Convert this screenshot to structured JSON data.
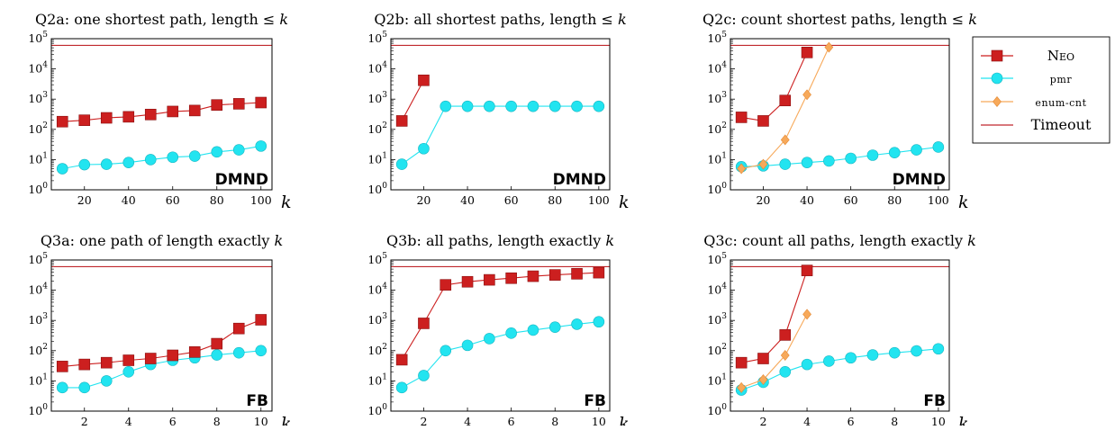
{
  "colors": {
    "neo": "#cc1f1f",
    "pmr": "#22e4f0",
    "enum": "#f7a95a",
    "timeout": "#c0282d"
  },
  "chart_data": [
    {
      "id": "q2a",
      "type": "line",
      "title": "Q2a: one shortest path, length ≤ ",
      "title_var": "k",
      "xlabel": "k",
      "dataset": "DMND",
      "yscale": "log",
      "ylim": [
        1,
        100000
      ],
      "xlim": [
        5,
        105
      ],
      "xticks": [
        20,
        40,
        60,
        80,
        100
      ],
      "yticks": [
        {
          "v": 1,
          "e": "0"
        },
        {
          "v": 10,
          "e": "1"
        },
        {
          "v": 100,
          "e": "2"
        },
        {
          "v": 1000,
          "e": "3"
        },
        {
          "v": 10000,
          "e": "4"
        },
        {
          "v": 100000,
          "e": "5"
        }
      ],
      "timeout": 60000,
      "series": [
        {
          "name": "Neo",
          "marker": "square",
          "x": [
            10,
            20,
            30,
            40,
            50,
            60,
            70,
            80,
            90,
            100
          ],
          "y": [
            180,
            200,
            240,
            260,
            310,
            390,
            420,
            640,
            700,
            770
          ]
        },
        {
          "name": "PMR",
          "marker": "circle",
          "x": [
            10,
            20,
            30,
            40,
            50,
            60,
            70,
            80,
            90,
            100
          ],
          "y": [
            5,
            6.8,
            7,
            8,
            10,
            12,
            13,
            18,
            21,
            28
          ]
        }
      ]
    },
    {
      "id": "q2b",
      "type": "line",
      "title": "Q2b: all shortest paths, length ≤ ",
      "title_var": "k",
      "xlabel": "k",
      "dataset": "DMND",
      "yscale": "log",
      "ylim": [
        1,
        100000
      ],
      "xlim": [
        5,
        105
      ],
      "xticks": [
        20,
        40,
        60,
        80,
        100
      ],
      "yticks": [
        {
          "v": 1,
          "e": "0"
        },
        {
          "v": 10,
          "e": "1"
        },
        {
          "v": 100,
          "e": "2"
        },
        {
          "v": 1000,
          "e": "3"
        },
        {
          "v": 10000,
          "e": "4"
        },
        {
          "v": 100000,
          "e": "5"
        }
      ],
      "timeout": 60000,
      "series": [
        {
          "name": "Neo",
          "marker": "square",
          "x": [
            10,
            20
          ],
          "y": [
            190,
            4200
          ]
        },
        {
          "name": "PMR",
          "marker": "circle",
          "x": [
            10,
            20,
            30,
            40,
            50,
            60,
            70,
            80,
            90,
            100
          ],
          "y": [
            7,
            23,
            580,
            580,
            580,
            580,
            580,
            580,
            580,
            580
          ]
        }
      ]
    },
    {
      "id": "q2c",
      "type": "line",
      "title": "Q2c: count shortest paths, length ≤ ",
      "title_var": "k",
      "xlabel": "k",
      "dataset": "DMND",
      "yscale": "log",
      "ylim": [
        1,
        100000
      ],
      "xlim": [
        5,
        105
      ],
      "xticks": [
        20,
        40,
        60,
        80,
        100
      ],
      "yticks": [
        {
          "v": 1,
          "e": "0"
        },
        {
          "v": 10,
          "e": "1"
        },
        {
          "v": 100,
          "e": "2"
        },
        {
          "v": 1000,
          "e": "3"
        },
        {
          "v": 10000,
          "e": "4"
        },
        {
          "v": 100000,
          "e": "5"
        }
      ],
      "timeout": 60000,
      "series": [
        {
          "name": "Neo",
          "marker": "square",
          "x": [
            10,
            20,
            30,
            40
          ],
          "y": [
            250,
            190,
            900,
            35000
          ]
        },
        {
          "name": "PMR",
          "marker": "circle",
          "x": [
            10,
            20,
            30,
            40,
            50,
            60,
            70,
            80,
            90,
            100
          ],
          "y": [
            5.8,
            6.2,
            7,
            8,
            9,
            11,
            14,
            17,
            21,
            26
          ]
        },
        {
          "name": "ENUM-CNT",
          "marker": "diamond",
          "x": [
            10,
            20,
            30,
            40,
            50
          ],
          "y": [
            5,
            7,
            45,
            1400,
            52000
          ]
        }
      ]
    },
    {
      "id": "q3a",
      "type": "line",
      "title": "Q3a: one path of length exactly ",
      "title_var": "k",
      "xlabel": "k",
      "dataset": "FB",
      "yscale": "log",
      "ylim": [
        1,
        100000
      ],
      "xlim": [
        0.5,
        10.5
      ],
      "xticks": [
        2,
        4,
        6,
        8,
        10
      ],
      "yticks": [
        {
          "v": 1,
          "e": "0"
        },
        {
          "v": 10,
          "e": "1"
        },
        {
          "v": 100,
          "e": "2"
        },
        {
          "v": 1000,
          "e": "3"
        },
        {
          "v": 10000,
          "e": "4"
        },
        {
          "v": 100000,
          "e": "5"
        }
      ],
      "timeout": 60000,
      "series": [
        {
          "name": "Neo",
          "marker": "square",
          "x": [
            1,
            2,
            3,
            4,
            5,
            6,
            7,
            8,
            9,
            10
          ],
          "y": [
            30,
            35,
            40,
            48,
            55,
            70,
            90,
            170,
            540,
            1050
          ]
        },
        {
          "name": "PMR",
          "marker": "circle",
          "x": [
            1,
            2,
            3,
            4,
            5,
            6,
            7,
            8,
            9,
            10
          ],
          "y": [
            6,
            6,
            10,
            20,
            35,
            48,
            58,
            72,
            85,
            100
          ]
        }
      ]
    },
    {
      "id": "q3b",
      "type": "line",
      "title": "Q3b: all paths, length exactly ",
      "title_var": "k",
      "xlabel": "k",
      "dataset": "FB",
      "yscale": "log",
      "ylim": [
        1,
        100000
      ],
      "xlim": [
        0.5,
        10.5
      ],
      "xticks": [
        2,
        4,
        6,
        8,
        10
      ],
      "yticks": [
        {
          "v": 1,
          "e": "0"
        },
        {
          "v": 10,
          "e": "1"
        },
        {
          "v": 100,
          "e": "2"
        },
        {
          "v": 1000,
          "e": "3"
        },
        {
          "v": 10000,
          "e": "4"
        },
        {
          "v": 100000,
          "e": "5"
        }
      ],
      "timeout": 60000,
      "series": [
        {
          "name": "Neo",
          "marker": "square",
          "x": [
            1,
            2,
            3,
            4,
            5,
            6,
            7,
            8,
            9,
            10
          ],
          "y": [
            50,
            800,
            15000,
            19000,
            22000,
            25000,
            29000,
            32000,
            35000,
            38000
          ]
        },
        {
          "name": "PMR",
          "marker": "circle",
          "x": [
            1,
            2,
            3,
            4,
            5,
            6,
            7,
            8,
            9,
            10
          ],
          "y": [
            6,
            15,
            100,
            150,
            250,
            380,
            480,
            600,
            750,
            900
          ]
        }
      ]
    },
    {
      "id": "q3c",
      "type": "line",
      "title": "Q3c: count all paths, length exactly ",
      "title_var": "k",
      "xlabel": "k",
      "dataset": "FB",
      "yscale": "log",
      "ylim": [
        1,
        100000
      ],
      "xlim": [
        0.5,
        10.5
      ],
      "xticks": [
        2,
        4,
        6,
        8,
        10
      ],
      "yticks": [
        {
          "v": 1,
          "e": "0"
        },
        {
          "v": 10,
          "e": "1"
        },
        {
          "v": 100,
          "e": "2"
        },
        {
          "v": 1000,
          "e": "3"
        },
        {
          "v": 10000,
          "e": "4"
        },
        {
          "v": 100000,
          "e": "5"
        }
      ],
      "timeout": 60000,
      "series": [
        {
          "name": "Neo",
          "marker": "square",
          "x": [
            1,
            2,
            3,
            4
          ],
          "y": [
            40,
            55,
            330,
            45000
          ]
        },
        {
          "name": "PMR",
          "marker": "circle",
          "x": [
            1,
            2,
            3,
            4,
            5,
            6,
            7,
            8,
            9,
            10
          ],
          "y": [
            5,
            9,
            20,
            35,
            45,
            58,
            72,
            85,
            98,
            115
          ]
        },
        {
          "name": "ENUM-CNT",
          "marker": "diamond",
          "x": [
            1,
            2,
            3,
            4
          ],
          "y": [
            6,
            11,
            70,
            1600
          ]
        }
      ]
    }
  ],
  "legend": {
    "position": "right",
    "entries": [
      {
        "label": "Neo",
        "series": "neo",
        "marker": "square"
      },
      {
        "label": "pmr",
        "series": "pmr",
        "marker": "circle"
      },
      {
        "label": "enum-cnt",
        "series": "enum",
        "marker": "diamond"
      },
      {
        "label": "Timeout",
        "series": "timeout",
        "marker": "none"
      }
    ]
  }
}
